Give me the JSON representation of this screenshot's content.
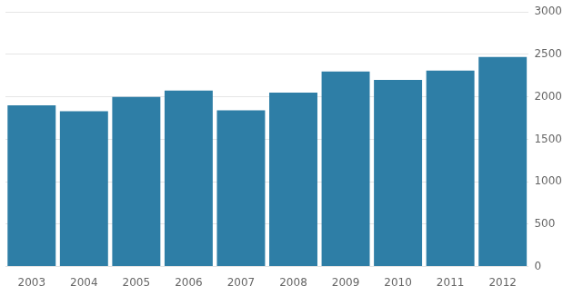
{
  "chart_data": {
    "type": "bar",
    "categories": [
      "2003",
      "2004",
      "2005",
      "2006",
      "2007",
      "2008",
      "2009",
      "2010",
      "2011",
      "2012"
    ],
    "values": [
      1900,
      1830,
      2000,
      2075,
      1840,
      2050,
      2300,
      2200,
      2310,
      2470
    ],
    "color": "#2e7ea6",
    "ylim": [
      0,
      3000
    ],
    "yticks": [
      0,
      500,
      1000,
      1500,
      2000,
      2500,
      3000
    ],
    "grid": true
  }
}
